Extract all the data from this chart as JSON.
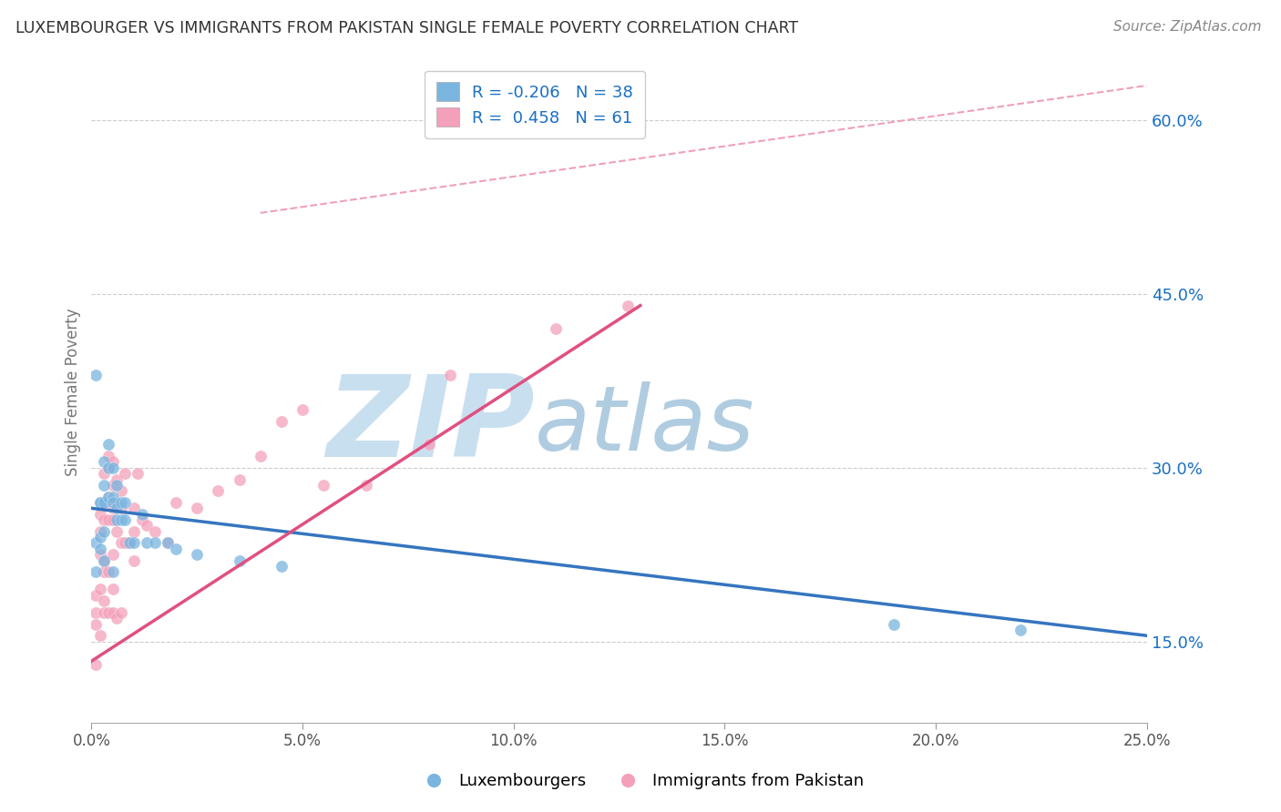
{
  "title": "LUXEMBOURGER VS IMMIGRANTS FROM PAKISTAN SINGLE FEMALE POVERTY CORRELATION CHART",
  "source": "Source: ZipAtlas.com",
  "ylabel": "Single Female Poverty",
  "xlim": [
    0.0,
    0.25
  ],
  "ylim": [
    0.08,
    0.65
  ],
  "xticks": [
    0.0,
    0.05,
    0.1,
    0.15,
    0.2,
    0.25
  ],
  "yticks_right": [
    0.15,
    0.3,
    0.45,
    0.6
  ],
  "ytick_labels_right": [
    "15.0%",
    "30.0%",
    "45.0%",
    "60.0%"
  ],
  "xtick_labels": [
    "0.0%",
    "5.0%",
    "10.0%",
    "15.0%",
    "20.0%",
    "25.0%"
  ],
  "blue_color": "#7ab5e0",
  "pink_color": "#f4a0ba",
  "blue_line_color": "#3575c0",
  "pink_line_color": "#e05080",
  "diag_line_color": "#f0a0b8",
  "blue_R": -0.206,
  "blue_N": 38,
  "pink_R": 0.458,
  "pink_N": 61,
  "legend_R_color": "#1a6fc4",
  "watermark_zip": "ZIP",
  "watermark_atlas": "atlas",
  "watermark_color_zip": "#c8dff0",
  "watermark_color_atlas": "#b0cce0",
  "background_color": "#ffffff",
  "grid_color": "#cccccc",
  "blue_scatter_x": [
    0.001,
    0.001,
    0.001,
    0.002,
    0.002,
    0.002,
    0.002,
    0.003,
    0.003,
    0.003,
    0.003,
    0.003,
    0.004,
    0.004,
    0.004,
    0.005,
    0.005,
    0.005,
    0.005,
    0.006,
    0.006,
    0.006,
    0.007,
    0.007,
    0.008,
    0.008,
    0.009,
    0.01,
    0.012,
    0.013,
    0.015,
    0.018,
    0.02,
    0.025,
    0.035,
    0.045,
    0.19,
    0.22
  ],
  "blue_scatter_y": [
    0.38,
    0.235,
    0.21,
    0.27,
    0.27,
    0.24,
    0.23,
    0.305,
    0.285,
    0.27,
    0.245,
    0.22,
    0.32,
    0.3,
    0.275,
    0.3,
    0.275,
    0.27,
    0.21,
    0.285,
    0.265,
    0.255,
    0.27,
    0.255,
    0.27,
    0.255,
    0.235,
    0.235,
    0.26,
    0.235,
    0.235,
    0.235,
    0.23,
    0.225,
    0.22,
    0.215,
    0.165,
    0.16
  ],
  "pink_scatter_x": [
    0.001,
    0.001,
    0.001,
    0.001,
    0.002,
    0.002,
    0.002,
    0.002,
    0.002,
    0.003,
    0.003,
    0.003,
    0.003,
    0.003,
    0.003,
    0.003,
    0.004,
    0.004,
    0.004,
    0.004,
    0.004,
    0.004,
    0.005,
    0.005,
    0.005,
    0.005,
    0.005,
    0.005,
    0.005,
    0.006,
    0.006,
    0.006,
    0.006,
    0.007,
    0.007,
    0.007,
    0.007,
    0.008,
    0.008,
    0.009,
    0.01,
    0.01,
    0.01,
    0.011,
    0.012,
    0.013,
    0.015,
    0.018,
    0.02,
    0.025,
    0.03,
    0.035,
    0.04,
    0.045,
    0.05,
    0.055,
    0.065,
    0.08,
    0.085,
    0.11,
    0.127
  ],
  "pink_scatter_y": [
    0.19,
    0.175,
    0.165,
    0.13,
    0.26,
    0.245,
    0.225,
    0.195,
    0.155,
    0.295,
    0.27,
    0.255,
    0.22,
    0.21,
    0.185,
    0.175,
    0.31,
    0.3,
    0.275,
    0.255,
    0.21,
    0.175,
    0.305,
    0.285,
    0.265,
    0.255,
    0.225,
    0.195,
    0.175,
    0.29,
    0.27,
    0.245,
    0.17,
    0.28,
    0.265,
    0.235,
    0.175,
    0.295,
    0.235,
    0.235,
    0.265,
    0.245,
    0.22,
    0.295,
    0.255,
    0.25,
    0.245,
    0.235,
    0.27,
    0.265,
    0.28,
    0.29,
    0.31,
    0.34,
    0.35,
    0.285,
    0.285,
    0.32,
    0.38,
    0.42,
    0.44
  ],
  "blue_line_x": [
    0.0,
    0.25
  ],
  "blue_line_y": [
    0.265,
    0.155
  ],
  "pink_line_x": [
    0.0,
    0.13
  ],
  "pink_line_y": [
    0.133,
    0.44
  ],
  "diag_line_x": [
    0.04,
    0.25
  ],
  "diag_line_y": [
    0.52,
    0.63
  ]
}
